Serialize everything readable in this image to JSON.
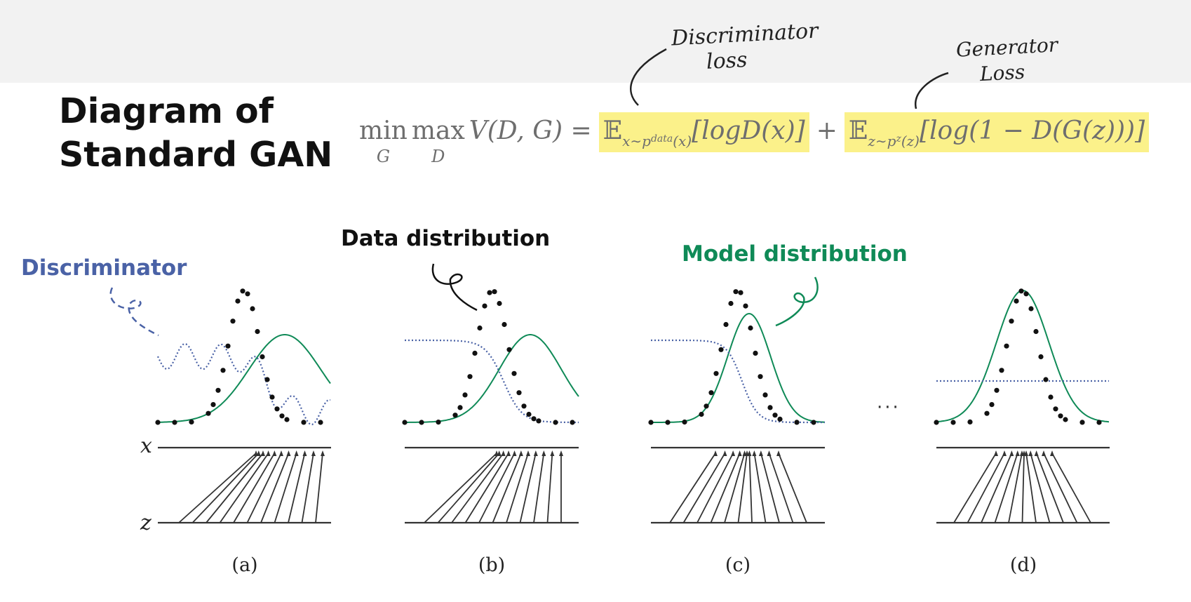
{
  "title_line1": "Diagram of",
  "title_line2": "Standard GAN",
  "formula": {
    "min": "min",
    "min_sub": "G",
    "max": "max",
    "max_sub": "D",
    "lhs": "V(D, G) =",
    "term1_E": "𝔼",
    "term1_sub": "x∼p",
    "term1_subsub": "data",
    "term1_sub2": "(x)",
    "term1_body": "[logD(x)]",
    "plus": "+",
    "term2_E": "𝔼",
    "term2_sub": "z∼p",
    "term2_subsub": "z",
    "term2_sub2": "(z)",
    "term2_body": "[log(1 − D(G(z)))]"
  },
  "handwritten": {
    "disc_line1": "Discriminator",
    "disc_line2": "loss",
    "gen_line1": "Generator",
    "gen_line2": "Loss"
  },
  "labels": {
    "discriminator": "Discriminator",
    "data_distribution": "Data distribution",
    "model_distribution": "Model distribution"
  },
  "axes": {
    "x": "x",
    "z": "z"
  },
  "ellipsis": "···",
  "captions": [
    "(a)",
    "(b)",
    "(c)",
    "(d)"
  ],
  "colors": {
    "highlight": "#fbf18a",
    "discriminator": "#4a62a6",
    "model": "#0f8a57",
    "data": "#111111"
  }
}
